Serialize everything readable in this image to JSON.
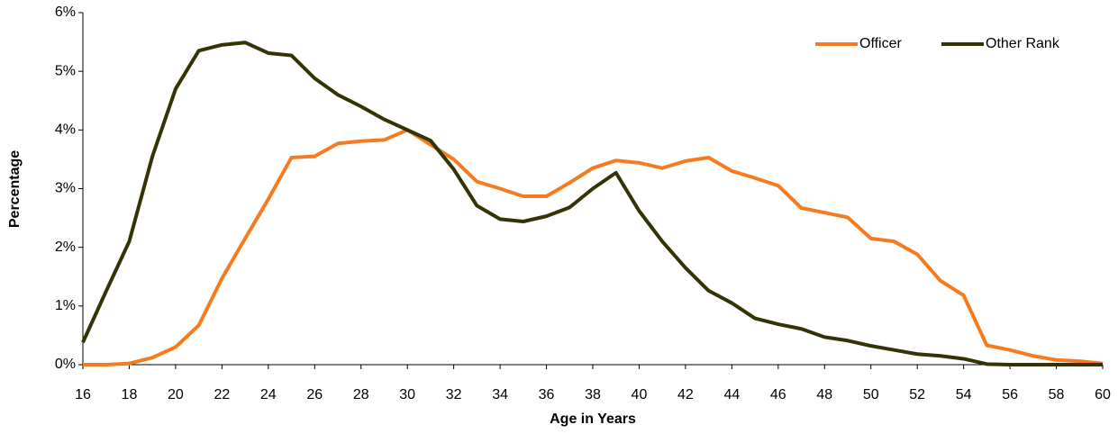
{
  "chart_data": {
    "type": "line",
    "xlabel": "Age in Years",
    "ylabel": "Percentage",
    "x": [
      16,
      17,
      18,
      19,
      20,
      21,
      22,
      23,
      24,
      25,
      26,
      27,
      28,
      29,
      30,
      31,
      32,
      33,
      34,
      35,
      36,
      37,
      38,
      39,
      40,
      41,
      42,
      43,
      44,
      45,
      46,
      47,
      48,
      49,
      50,
      51,
      52,
      53,
      54,
      55,
      56,
      57,
      58,
      59,
      60
    ],
    "series": [
      {
        "name": "Officer",
        "color": "#f47b20",
        "values": [
          0,
          0,
          0.02,
          0.12,
          0.3,
          0.67,
          1.47,
          2.15,
          2.82,
          3.53,
          3.55,
          3.77,
          3.81,
          3.83,
          4.0,
          3.75,
          3.5,
          3.12,
          3.0,
          2.87,
          2.87,
          3.1,
          3.35,
          3.48,
          3.44,
          3.35,
          3.47,
          3.53,
          3.3,
          3.18,
          3.05,
          2.67,
          2.59,
          2.51,
          2.15,
          2.1,
          1.88,
          1.43,
          1.18,
          0.33,
          0.25,
          0.15,
          0.08,
          0.06,
          0.02
        ]
      },
      {
        "name": "Other Rank",
        "color": "#333305",
        "values": [
          0.38,
          1.25,
          2.1,
          3.55,
          4.7,
          5.35,
          5.45,
          5.49,
          5.31,
          5.27,
          4.88,
          4.6,
          4.4,
          4.18,
          4.0,
          3.82,
          3.33,
          2.71,
          2.48,
          2.44,
          2.53,
          2.68,
          3.0,
          3.27,
          2.62,
          2.1,
          1.65,
          1.26,
          1.05,
          0.79,
          0.69,
          0.61,
          0.47,
          0.41,
          0.32,
          0.25,
          0.18,
          0.15,
          0.1,
          0.01,
          0,
          0,
          0,
          0,
          0
        ]
      }
    ],
    "xlim": [
      16,
      60
    ],
    "xticks": [
      16,
      18,
      20,
      22,
      24,
      26,
      28,
      30,
      32,
      34,
      36,
      38,
      40,
      42,
      44,
      46,
      48,
      50,
      52,
      54,
      56,
      58,
      60
    ],
    "ylim": [
      0,
      6
    ],
    "yticks": [
      {
        "value": 0,
        "label": "0%"
      },
      {
        "value": 1,
        "label": "1%"
      },
      {
        "value": 2,
        "label": "2%"
      },
      {
        "value": 3,
        "label": "3%"
      },
      {
        "value": 4,
        "label": "4%"
      },
      {
        "value": 5,
        "label": "5%"
      },
      {
        "value": 6,
        "label": "6%"
      }
    ],
    "legend": "top-right"
  }
}
